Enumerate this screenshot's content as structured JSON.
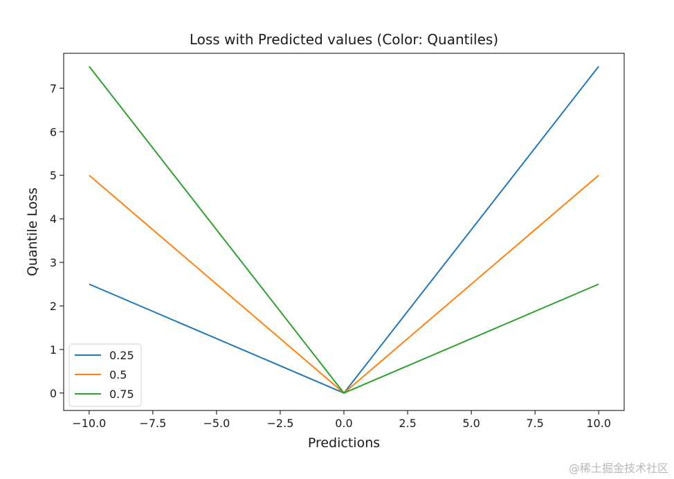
{
  "chart_data": {
    "type": "line",
    "title": "Loss with Predicted values (Color: Quantiles)",
    "xlabel": "Predictions",
    "ylabel": "Quantile Loss",
    "xlim": [
      -11,
      11
    ],
    "ylim": [
      -0.4,
      7.8
    ],
    "xticks": [
      -10.0,
      -7.5,
      -5.0,
      -2.5,
      0.0,
      2.5,
      5.0,
      7.5,
      10.0
    ],
    "xtick_labels": [
      "−10.0",
      "−7.5",
      "−5.0",
      "−2.5",
      "0.0",
      "2.5",
      "5.0",
      "7.5",
      "10.0"
    ],
    "yticks": [
      0,
      1,
      2,
      3,
      4,
      5,
      6,
      7
    ],
    "ytick_labels": [
      "0",
      "1",
      "2",
      "3",
      "4",
      "5",
      "6",
      "7"
    ],
    "grid": false,
    "legend_position": "lower-left",
    "series": [
      {
        "name": "0.25",
        "color": "#1f77b4",
        "x": [
          -10,
          0,
          10
        ],
        "y": [
          2.5,
          0,
          7.5
        ]
      },
      {
        "name": "0.5",
        "color": "#ff7f0e",
        "x": [
          -10,
          0,
          10
        ],
        "y": [
          5.0,
          0,
          5.0
        ]
      },
      {
        "name": "0.75",
        "color": "#2ca02c",
        "x": [
          -10,
          0,
          10
        ],
        "y": [
          7.5,
          0,
          2.5
        ]
      }
    ]
  },
  "watermark": "@稀土掘金技术社区"
}
